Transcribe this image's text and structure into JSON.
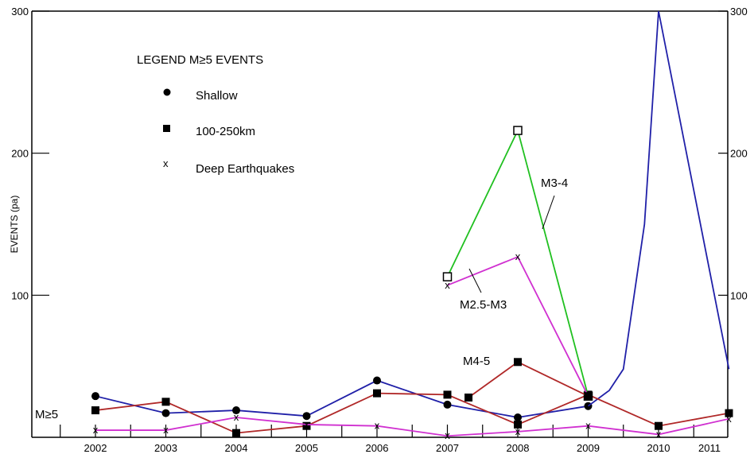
{
  "chart_data": {
    "type": "line",
    "ylabel": "EVENTS (pa)",
    "ylim": [
      0,
      300
    ],
    "y_ticks": [
      "100",
      "200",
      "300"
    ],
    "right_y_ticks": [
      "100",
      "200",
      "300"
    ],
    "x": [
      "2002",
      "2003",
      "2004",
      "2005",
      "2006",
      "2007",
      "2008",
      "2009",
      "2010",
      "2011"
    ],
    "legend": {
      "title": "LEGEND M≥5 EVENTS",
      "placement": "top-left",
      "items": [
        {
          "label": "Shallow",
          "marker": "circle"
        },
        {
          "label": "100-250km",
          "marker": "square"
        },
        {
          "label": "Deep Earthquakes",
          "marker": "x"
        }
      ]
    },
    "group_label": "M≥5",
    "series": [
      {
        "id": "shallow",
        "color": "#2020a8",
        "marker": "circle",
        "points": [
          [
            2002,
            29
          ],
          [
            2003,
            17
          ],
          [
            2004,
            19
          ],
          [
            2005,
            15
          ],
          [
            2006,
            40
          ],
          [
            2007,
            23
          ],
          [
            2008,
            14
          ],
          [
            2009,
            22
          ]
        ]
      },
      {
        "id": "shallow-trend",
        "color": "#2020a8",
        "marker": "none",
        "points": [
          [
            2009,
            22
          ],
          [
            2009.3,
            33
          ],
          [
            2009.5,
            48
          ],
          [
            2009.8,
            150
          ],
          [
            2010,
            300
          ],
          [
            2011,
            48
          ]
        ]
      },
      {
        "id": "mid-depth",
        "color": "#b02828",
        "marker": "square",
        "points": [
          [
            2002,
            19
          ],
          [
            2003,
            25
          ],
          [
            2004,
            3
          ],
          [
            2005,
            8
          ],
          [
            2006,
            31
          ],
          [
            2007,
            30
          ],
          [
            2008,
            9
          ],
          [
            2009,
            30
          ],
          [
            2010,
            8
          ],
          [
            2011,
            17
          ]
        ]
      },
      {
        "id": "deep",
        "color": "#d030d0",
        "marker": "x",
        "points": [
          [
            2002,
            5
          ],
          [
            2003,
            5
          ],
          [
            2004,
            14
          ],
          [
            2005,
            9
          ],
          [
            2006,
            8
          ],
          [
            2007,
            1
          ],
          [
            2008,
            4
          ],
          [
            2009,
            8
          ],
          [
            2010,
            2
          ],
          [
            2011,
            13
          ]
        ]
      },
      {
        "id": "M3-4",
        "name": "M3-4",
        "color": "#20c020",
        "marker": "square-open",
        "points": [
          [
            2007,
            113
          ],
          [
            2008,
            216
          ],
          [
            2009,
            29
          ]
        ]
      },
      {
        "id": "M2.5-M3",
        "name": "M2.5-M3",
        "color": "#d030d0",
        "marker": "x",
        "points": [
          [
            2007,
            107
          ],
          [
            2008,
            127
          ],
          [
            2009,
            29
          ]
        ]
      },
      {
        "id": "M4-5",
        "name": "M4-5",
        "color": "#b02828",
        "marker": "square",
        "points": [
          [
            2007.3,
            28
          ],
          [
            2008,
            53
          ],
          [
            2009,
            29
          ]
        ]
      }
    ],
    "annotations": [
      {
        "text": "M3-4",
        "series": "M3-4"
      },
      {
        "text": "M2.5-M3",
        "series": "M2.5-M3"
      },
      {
        "text": "M4-5",
        "series": "M4-5"
      }
    ]
  }
}
